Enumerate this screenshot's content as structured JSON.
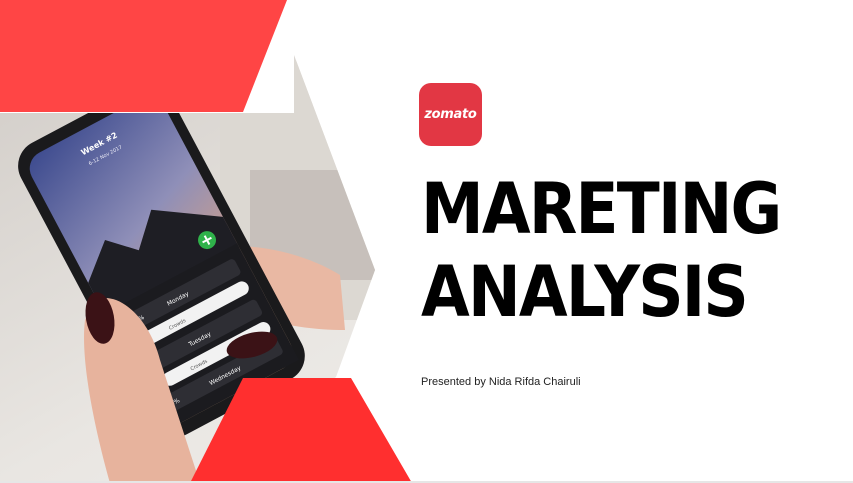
{
  "logo": {
    "text": "zomato",
    "brand_color": "#e23744"
  },
  "title": {
    "line1": "MARETING",
    "line2": "ANALYSIS"
  },
  "presenter": "Presented by Nida Rifda Chairuli",
  "phone_screen": {
    "week": "Week #2",
    "dates": "6-12 Nov 2017",
    "rows": [
      {
        "percent": "100%",
        "day": "Monday",
        "label": "Crowds"
      },
      {
        "percent": "0%",
        "day": "Tuesday",
        "label": "Crowds"
      },
      {
        "percent": "0%",
        "day": "Wednesday",
        "label": "Crowds"
      }
    ]
  },
  "colors": {
    "accent_red": "#ff4545",
    "accent_red_dark": "#ff2f2f"
  }
}
